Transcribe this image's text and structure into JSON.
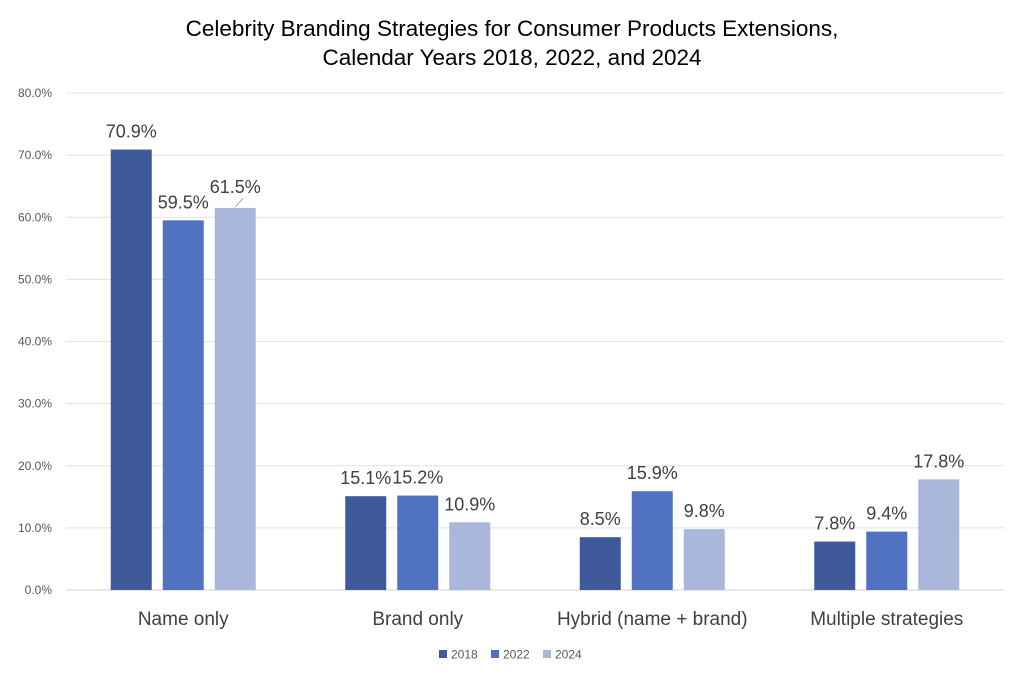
{
  "chart_data": {
    "type": "bar",
    "title_lines": [
      "Celebrity Branding Strategies for Consumer Products Extensions,",
      "Calendar Years 2018, 2022, and 2024"
    ],
    "categories": [
      "Name only",
      "Brand only",
      "Hybrid (name + brand)",
      "Multiple strategies"
    ],
    "series": [
      {
        "name": "2018",
        "color": "#3F5A9B",
        "values": [
          70.9,
          15.1,
          8.5,
          7.8
        ],
        "labels": [
          "70.9%",
          "15.1%",
          "8.5%",
          "7.8%"
        ]
      },
      {
        "name": "2022",
        "color": "#5072C0",
        "values": [
          59.5,
          15.2,
          15.9,
          9.4
        ],
        "labels": [
          "59.5%",
          "15.2%",
          "15.9%",
          "9.4%"
        ]
      },
      {
        "name": "2024",
        "color": "#A9B7DA",
        "values": [
          61.5,
          10.9,
          9.8,
          17.8
        ],
        "labels": [
          "61.5%",
          "10.9%",
          "9.8%",
          "17.8%"
        ]
      }
    ],
    "y_ticks": [
      "0.0%",
      "10.0%",
      "20.0%",
      "30.0%",
      "40.0%",
      "50.0%",
      "60.0%",
      "70.0%",
      "80.0%"
    ],
    "ylim": [
      0,
      80
    ],
    "grid": true,
    "legend_position": "bottom"
  }
}
